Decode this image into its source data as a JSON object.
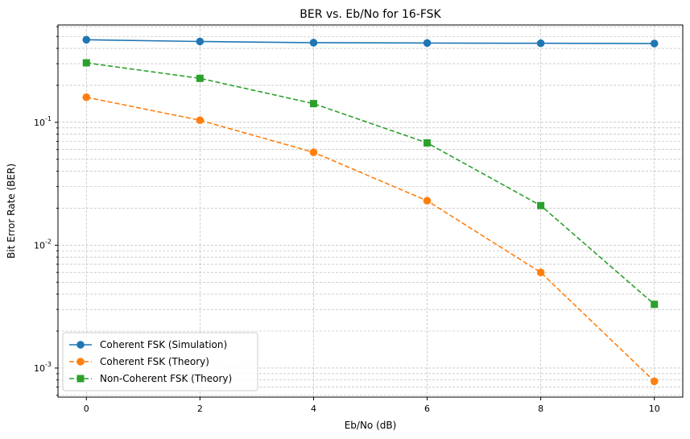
{
  "chart_data": {
    "type": "line",
    "title": "BER vs. Eb/No for 16-FSK",
    "xlabel": "Eb/No (dB)",
    "ylabel": "Bit Error Rate (BER)",
    "xlim": [
      -0.5,
      10.5
    ],
    "ylim": [
      0.00058,
      0.62
    ],
    "yscale": "log",
    "grid": true,
    "legend_position": "lower-left",
    "x_ticks": [
      0,
      2,
      4,
      6,
      8,
      10
    ],
    "x_tick_labels": [
      "0",
      "2",
      "4",
      "6",
      "8",
      "10"
    ],
    "y_ticks": [
      0.001,
      0.01,
      0.1
    ],
    "y_tick_labels": [
      "10^-3",
      "10^-2",
      "10^-1"
    ],
    "x": [
      0,
      2,
      4,
      6,
      8,
      10
    ],
    "series": [
      {
        "name": "Coherent FSK (Simulation)",
        "values": [
          0.47,
          0.455,
          0.445,
          0.442,
          0.44,
          0.438
        ],
        "color": "#1f77b4",
        "linestyle": "solid",
        "marker": "circle"
      },
      {
        "name": "Coherent FSK (Theory)",
        "values": [
          0.16,
          0.104,
          0.057,
          0.023,
          0.006,
          0.00078
        ],
        "color": "#ff7f0e",
        "linestyle": "dashed",
        "marker": "circle"
      },
      {
        "name": "Non-Coherent FSK (Theory)",
        "values": [
          0.305,
          0.228,
          0.142,
          0.068,
          0.021,
          0.0033
        ],
        "color": "#2ca02c",
        "linestyle": "dashed",
        "marker": "square"
      }
    ]
  }
}
